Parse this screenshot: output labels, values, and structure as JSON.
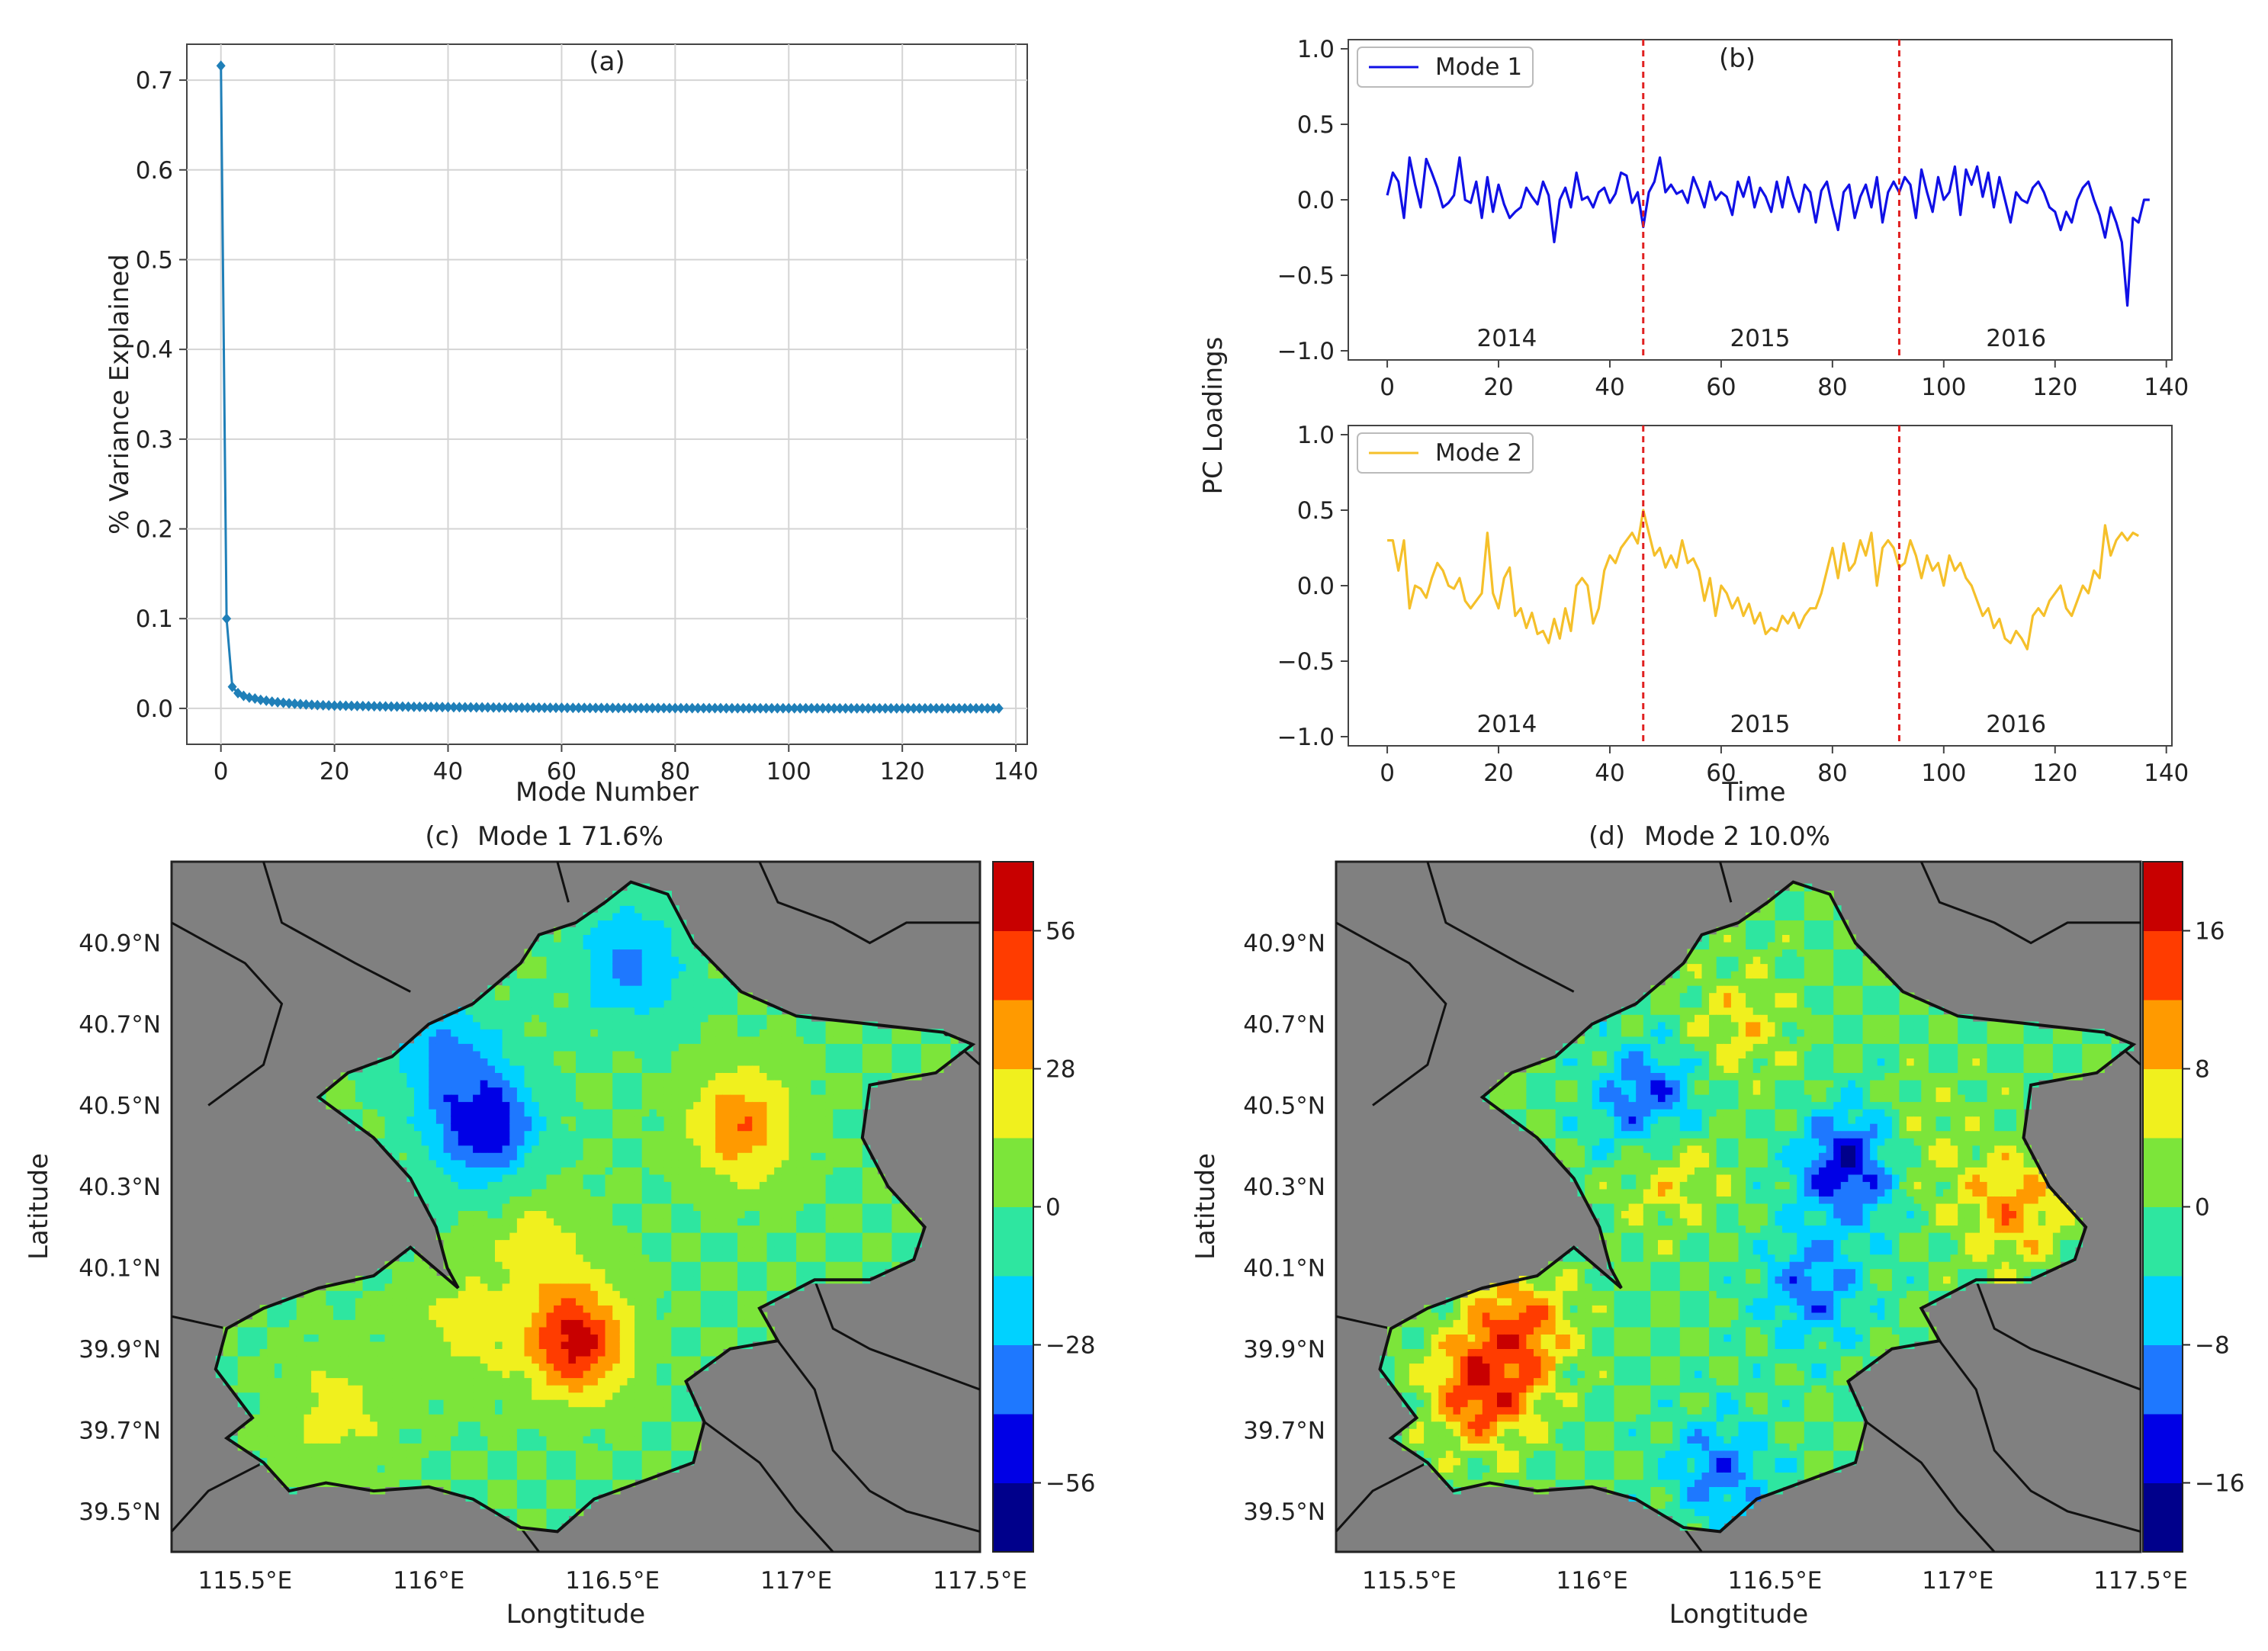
{
  "chart_data": [
    {
      "id": "a",
      "type": "line",
      "title": "(a)",
      "xlabel": "Mode Number",
      "ylabel": "% Variance Explained",
      "xlim": [
        -6,
        142
      ],
      "ylim": [
        -0.04,
        0.74
      ],
      "xticks": [
        0,
        20,
        40,
        60,
        80,
        100,
        120,
        140
      ],
      "yticks": [
        0.0,
        0.1,
        0.2,
        0.3,
        0.4,
        0.5,
        0.6,
        0.7
      ],
      "ytick_labels": [
        "0.0",
        "0.1",
        "0.2",
        "0.3",
        "0.4",
        "0.5",
        "0.6",
        "0.7"
      ],
      "grid": true,
      "marker": "diamond",
      "color": "#1f7fb8",
      "series": [
        {
          "name": "variance",
          "x_start": 0,
          "x_end": 137,
          "head": [
            0.716,
            0.1,
            0.024,
            0.017,
            0.014,
            0.012,
            0.011,
            0.0095,
            0.0085,
            0.0075,
            0.0068,
            0.0062,
            0.0056,
            0.0051,
            0.0047,
            0.0043,
            0.004,
            0.0037,
            0.0034,
            0.0032,
            0.003
          ],
          "tail_decay_to": 0.0
        }
      ]
    },
    {
      "id": "b1",
      "type": "line",
      "title": "(b)",
      "xlabel": "",
      "ylabel": "PC Loadings",
      "xlim": [
        -7,
        141
      ],
      "ylim": [
        -1.0,
        1.0
      ],
      "xticks": [
        0,
        20,
        40,
        60,
        80,
        100,
        120,
        140
      ],
      "yticks": [
        -1.0,
        -0.5,
        0.0,
        0.5,
        1.0
      ],
      "ytick_labels": [
        "−1.0",
        "−0.5",
        "0.0",
        "0.5",
        "1.0"
      ],
      "legend": "top-left",
      "year_labels": [
        "2014",
        "2015",
        "2016"
      ],
      "year_label_x": [
        21.5,
        67,
        113
      ],
      "vlines": [
        46,
        92
      ],
      "vline_color": "#e02020",
      "series": [
        {
          "name": "Mode 1",
          "color": "#1010e6",
          "values": [
            0.03,
            0.18,
            0.12,
            -0.12,
            0.28,
            0.1,
            -0.05,
            0.27,
            0.18,
            0.08,
            -0.05,
            -0.02,
            0.03,
            0.28,
            0.0,
            -0.02,
            0.12,
            -0.12,
            0.15,
            -0.08,
            0.1,
            -0.03,
            -0.12,
            -0.08,
            -0.05,
            0.08,
            0.02,
            -0.03,
            0.12,
            0.03,
            -0.28,
            0.0,
            0.08,
            -0.05,
            0.18,
            0.0,
            0.02,
            -0.05,
            0.05,
            0.08,
            -0.02,
            0.04,
            0.18,
            0.16,
            -0.02,
            0.05,
            -0.18,
            0.05,
            0.12,
            0.28,
            0.05,
            0.1,
            0.04,
            0.06,
            -0.02,
            0.15,
            0.06,
            -0.05,
            0.12,
            0.0,
            0.05,
            0.02,
            -0.1,
            0.12,
            0.02,
            0.15,
            -0.05,
            0.08,
            0.02,
            -0.08,
            0.12,
            -0.05,
            0.15,
            0.02,
            -0.08,
            0.1,
            0.05,
            -0.15,
            0.06,
            0.12,
            -0.05,
            -0.2,
            0.05,
            0.1,
            -0.12,
            0.02,
            0.1,
            -0.05,
            0.15,
            -0.15,
            0.05,
            0.12,
            0.05,
            0.15,
            0.1,
            -0.12,
            0.2,
            0.05,
            -0.08,
            0.15,
            0.0,
            0.05,
            0.22,
            -0.1,
            0.2,
            0.1,
            0.22,
            0.02,
            0.18,
            -0.05,
            0.15,
            0.0,
            -0.15,
            0.05,
            0.0,
            -0.02,
            0.08,
            0.12,
            0.05,
            -0.05,
            -0.08,
            -0.2,
            -0.08,
            -0.15,
            0.0,
            0.08,
            0.12,
            0.0,
            -0.1,
            -0.25,
            -0.05,
            -0.15,
            -0.28,
            -0.7,
            -0.12,
            -0.15,
            0.0,
            0.0
          ]
        }
      ]
    },
    {
      "id": "b2",
      "type": "line",
      "title": "",
      "xlabel": "Time",
      "ylabel": "",
      "xlim": [
        -7,
        141
      ],
      "ylim": [
        -1.0,
        1.0
      ],
      "xticks": [
        0,
        20,
        40,
        60,
        80,
        100,
        120,
        140
      ],
      "yticks": [
        -1.0,
        -0.5,
        0.0,
        0.5,
        1.0
      ],
      "ytick_labels": [
        "−1.0",
        "−0.5",
        "0.0",
        "0.5",
        "1.0"
      ],
      "legend": "top-left",
      "year_labels": [
        "2014",
        "2015",
        "2016"
      ],
      "year_label_x": [
        21.5,
        67,
        113
      ],
      "vlines": [
        46,
        92
      ],
      "vline_color": "#e02020",
      "series": [
        {
          "name": "Mode 2",
          "color": "#f5c02a",
          "values": [
            0.3,
            0.3,
            0.1,
            0.3,
            -0.15,
            0.0,
            -0.02,
            -0.08,
            0.05,
            0.15,
            0.1,
            0.0,
            -0.02,
            0.05,
            -0.1,
            -0.15,
            -0.1,
            -0.05,
            0.35,
            -0.05,
            -0.15,
            0.05,
            0.12,
            -0.2,
            -0.15,
            -0.28,
            -0.18,
            -0.32,
            -0.3,
            -0.38,
            -0.22,
            -0.35,
            -0.15,
            -0.3,
            0.0,
            0.05,
            0.0,
            -0.25,
            -0.15,
            0.1,
            0.2,
            0.15,
            0.25,
            0.3,
            0.35,
            0.28,
            0.5,
            0.35,
            0.2,
            0.25,
            0.12,
            0.2,
            0.12,
            0.3,
            0.15,
            0.18,
            0.1,
            -0.1,
            0.05,
            -0.2,
            0.0,
            -0.05,
            -0.15,
            -0.08,
            -0.2,
            -0.12,
            -0.25,
            -0.18,
            -0.32,
            -0.28,
            -0.3,
            -0.2,
            -0.25,
            -0.18,
            -0.28,
            -0.2,
            -0.15,
            -0.15,
            -0.05,
            0.1,
            0.25,
            0.05,
            0.28,
            0.1,
            0.15,
            0.3,
            0.2,
            0.35,
            0.0,
            0.25,
            0.3,
            0.25,
            0.12,
            0.15,
            0.3,
            0.2,
            0.05,
            0.2,
            0.1,
            0.15,
            0.0,
            0.2,
            0.1,
            0.15,
            0.05,
            0.0,
            -0.1,
            -0.2,
            -0.15,
            -0.28,
            -0.22,
            -0.35,
            -0.38,
            -0.3,
            -0.35,
            -0.42,
            -0.2,
            -0.15,
            -0.2,
            -0.1,
            -0.05,
            0.0,
            -0.15,
            -0.2,
            -0.1,
            0.0,
            -0.05,
            0.1,
            0.05,
            0.4,
            0.2,
            0.3,
            0.35,
            0.3,
            0.35,
            0.33
          ]
        }
      ]
    },
    {
      "id": "c",
      "type": "heatmap",
      "title": "(c)",
      "subtitle": "Mode 1    71.6%",
      "xlabel": "Longtitude",
      "ylabel": "Latitude",
      "xlim": [
        115.3,
        117.5
      ],
      "ylim": [
        39.4,
        41.1
      ],
      "xtick_labels": [
        "115.5°E",
        "116°E",
        "116.5°E",
        "117°E",
        "117.5°E"
      ],
      "xticks": [
        115.5,
        116.0,
        116.5,
        117.0,
        117.5
      ],
      "ytick_labels": [
        "39.5°N",
        "39.7°N",
        "39.9°N",
        "40.1°N",
        "40.3°N",
        "40.5°N",
        "40.7°N",
        "40.9°N"
      ],
      "yticks": [
        39.5,
        39.7,
        39.9,
        40.1,
        40.3,
        40.5,
        40.7,
        40.9
      ],
      "colorbar_ticks": [
        "56",
        "28",
        "0",
        "−28",
        "−56"
      ],
      "colorbar_range": [
        -70,
        70
      ],
      "colorbar_tick_values": [
        56,
        28,
        0,
        -28,
        -56
      ],
      "levels": 10,
      "colormap": [
        "#00008b",
        "#0000e6",
        "#1e78ff",
        "#00d2ff",
        "#2ee6a0",
        "#7ce53a",
        "#f0f01e",
        "#ff9a00",
        "#ff3c00",
        "#c80000"
      ],
      "hotspots": [
        {
          "lon": 116.4,
          "lat": 39.92,
          "value": 62
        },
        {
          "lon": 116.1,
          "lat": 39.95,
          "value": 20
        },
        {
          "lon": 115.75,
          "lat": 39.75,
          "value": 22
        },
        {
          "lon": 116.85,
          "lat": 40.45,
          "value": 40
        },
        {
          "lon": 116.15,
          "lat": 40.45,
          "value": -55
        },
        {
          "lon": 116.05,
          "lat": 40.62,
          "value": -30
        },
        {
          "lon": 116.55,
          "lat": 40.85,
          "value": -32
        },
        {
          "lon": 116.3,
          "lat": 40.15,
          "value": 20
        }
      ]
    },
    {
      "id": "d",
      "type": "heatmap",
      "title": "(d)",
      "subtitle": "Mode 2    10.0%",
      "xlabel": "Longtitude",
      "ylabel": "Latitude",
      "xlim": [
        115.3,
        117.5
      ],
      "ylim": [
        39.4,
        41.1
      ],
      "xtick_labels": [
        "115.5°E",
        "116°E",
        "116.5°E",
        "117°E",
        "117.5°E"
      ],
      "xticks": [
        115.5,
        116.0,
        116.5,
        117.0,
        117.5
      ],
      "ytick_labels": [
        "39.5°N",
        "39.7°N",
        "39.9°N",
        "40.1°N",
        "40.3°N",
        "40.5°N",
        "40.7°N",
        "40.9°N"
      ],
      "yticks": [
        39.5,
        39.7,
        39.9,
        40.1,
        40.3,
        40.5,
        40.7,
        40.9
      ],
      "colorbar_ticks": [
        "16",
        "8",
        "0",
        "−8",
        "−16"
      ],
      "colorbar_range": [
        -20,
        20
      ],
      "colorbar_tick_values": [
        16,
        8,
        0,
        -8,
        -16
      ],
      "levels": 10,
      "colormap": [
        "#00008b",
        "#0000e6",
        "#1e78ff",
        "#00d2ff",
        "#2ee6a0",
        "#7ce53a",
        "#f0f01e",
        "#ff9a00",
        "#ff3c00",
        "#c80000"
      ],
      "hotspots": [
        {
          "lon": 115.7,
          "lat": 39.8,
          "value": 16
        },
        {
          "lon": 115.8,
          "lat": 39.95,
          "value": 13
        },
        {
          "lon": 116.2,
          "lat": 40.35,
          "value": 8
        },
        {
          "lon": 116.15,
          "lat": 40.5,
          "value": -14
        },
        {
          "lon": 116.7,
          "lat": 40.35,
          "value": -16
        },
        {
          "lon": 116.6,
          "lat": 40.05,
          "value": -10
        },
        {
          "lon": 116.35,
          "lat": 39.6,
          "value": -10
        },
        {
          "lon": 116.9,
          "lat": 40.4,
          "value": 4
        },
        {
          "lon": 117.15,
          "lat": 40.25,
          "value": 10
        },
        {
          "lon": 116.4,
          "lat": 40.7,
          "value": 6
        }
      ]
    }
  ]
}
